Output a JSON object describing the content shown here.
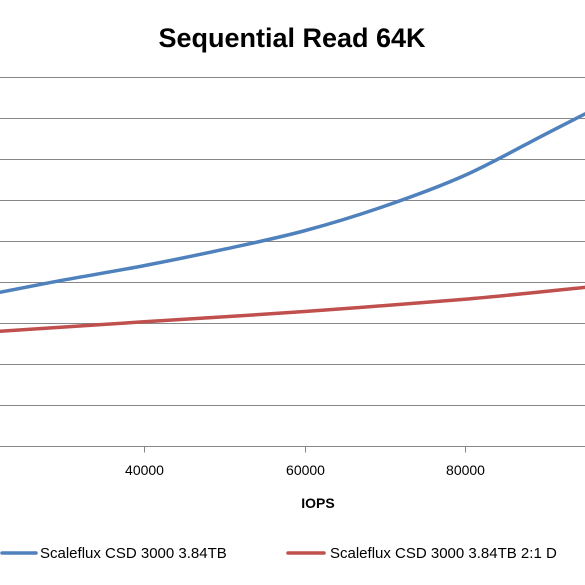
{
  "chart_data": {
    "type": "line",
    "title": "Sequential Read 64K",
    "xlabel": "IOPS",
    "ylabel": "",
    "xlim": [
      22000,
      95000
    ],
    "ylim": [
      0,
      100
    ],
    "grid": true,
    "xticks": [
      {
        "value": 40000,
        "label": "40000"
      },
      {
        "value": 60000,
        "label": "60000"
      },
      {
        "value": 80000,
        "label": "80000"
      }
    ],
    "ygrid": [
      10,
      20,
      30,
      40,
      50,
      60,
      70,
      80,
      90
    ],
    "legend_position": "bottom",
    "series": [
      {
        "name": "Scaleflux CSD 3000 3.84TB",
        "color": "#4F81BD",
        "x": [
          22000,
          30000,
          40000,
          50000,
          60000,
          70000,
          80000,
          90000,
          95000
        ],
        "y": [
          37.5,
          40.5,
          44.0,
          48.0,
          52.5,
          58.5,
          66.0,
          76.0,
          81.0
        ]
      },
      {
        "name": "Scaleflux CSD 3000 3.84TB 2:1 D",
        "color": "#C0504D",
        "x": [
          22000,
          40000,
          60000,
          80000,
          95000
        ],
        "y": [
          28.0,
          30.3,
          32.8,
          35.8,
          38.7
        ]
      }
    ]
  }
}
